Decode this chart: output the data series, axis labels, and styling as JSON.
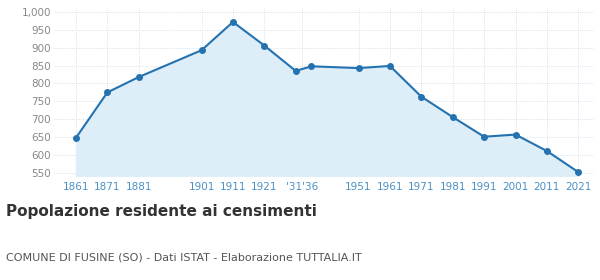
{
  "years": [
    1861,
    1871,
    1881,
    1901,
    1911,
    1921,
    1931,
    1936,
    1951,
    1961,
    1971,
    1981,
    1991,
    2001,
    2011,
    2021
  ],
  "values": [
    648,
    775,
    818,
    893,
    972,
    906,
    835,
    848,
    843,
    849,
    763,
    706,
    651,
    657,
    611,
    552
  ],
  "line_color": "#2472b0",
  "fill_color": "#ddeef8",
  "marker_color": "#2472b0",
  "background_color": "#ffffff",
  "grid_color": "#c8d8e8",
  "ylim": [
    540,
    1010
  ],
  "yticks": [
    550,
    600,
    650,
    700,
    750,
    800,
    850,
    900,
    950,
    1000
  ],
  "x_tick_positions": [
    1861,
    1871,
    1881,
    1901,
    1911,
    1921,
    1933,
    1951,
    1961,
    1971,
    1981,
    1991,
    2001,
    2011,
    2021
  ],
  "x_tick_labels": [
    "1861",
    "1871",
    "1881",
    "1901",
    "1911",
    "1921",
    "'31'36",
    "1951",
    "1961",
    "1971",
    "1981",
    "1991",
    "2001",
    "2011",
    "2021"
  ],
  "xlim_left": 1854,
  "xlim_right": 2026,
  "title": "Popolazione residente ai censimenti",
  "subtitle": "COMUNE DI FUSINE (SO) - Dati ISTAT - Elaborazione TUTTALIA.IT",
  "title_fontsize": 11,
  "subtitle_fontsize": 8,
  "title_color": "#333333",
  "subtitle_color": "#555555",
  "tick_label_color": "#4a90c4",
  "tick_label_fontsize": 7.5,
  "ytick_label_color": "#888888",
  "ytick_label_fontsize": 7.5
}
